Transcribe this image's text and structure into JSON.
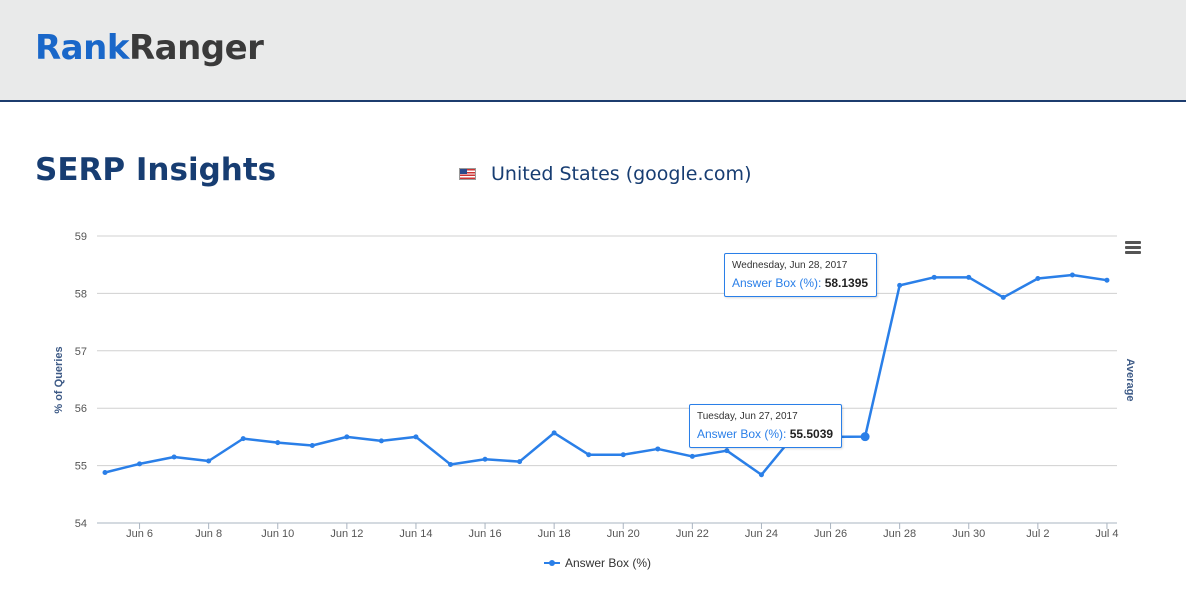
{
  "brand": {
    "logo_part1": "Rank",
    "logo_part2": "Ranger"
  },
  "page": {
    "title": "SERP Insights",
    "country": "United States (google.com)"
  },
  "colors": {
    "series": "#2a7fe8",
    "title": "#173d72",
    "header_bg": "#e9eaea"
  },
  "icons": {
    "flag": "us-flag-icon",
    "menu": "hamburger-menu-icon"
  },
  "tooltips": [
    {
      "date": "Wednesday, Jun 28, 2017",
      "series": "Answer Box (%)",
      "value": "58.1395"
    },
    {
      "date": "Tuesday, Jun 27, 2017",
      "series": "Answer Box (%)",
      "value": "55.5039"
    }
  ],
  "chart_data": {
    "type": "line",
    "ylabel": "% of Queries",
    "y2label": "Average",
    "ylim": [
      54,
      59
    ],
    "yticks": [
      54,
      55,
      56,
      57,
      58,
      59
    ],
    "grid": true,
    "legend_position": "bottom-center",
    "x": [
      "2017-06-05",
      "2017-06-06",
      "2017-06-07",
      "2017-06-08",
      "2017-06-09",
      "2017-06-10",
      "2017-06-11",
      "2017-06-12",
      "2017-06-13",
      "2017-06-14",
      "2017-06-15",
      "2017-06-16",
      "2017-06-17",
      "2017-06-18",
      "2017-06-19",
      "2017-06-20",
      "2017-06-21",
      "2017-06-22",
      "2017-06-23",
      "2017-06-24",
      "2017-06-25",
      "2017-06-26",
      "2017-06-27",
      "2017-06-28",
      "2017-06-29",
      "2017-06-30",
      "2017-07-01",
      "2017-07-02",
      "2017-07-03",
      "2017-07-04"
    ],
    "xtick_labels": [
      {
        "index": 1,
        "label": "Jun 6"
      },
      {
        "index": 3,
        "label": "Jun 8"
      },
      {
        "index": 5,
        "label": "Jun 10"
      },
      {
        "index": 7,
        "label": "Jun 12"
      },
      {
        "index": 9,
        "label": "Jun 14"
      },
      {
        "index": 11,
        "label": "Jun 16"
      },
      {
        "index": 13,
        "label": "Jun 18"
      },
      {
        "index": 15,
        "label": "Jun 20"
      },
      {
        "index": 17,
        "label": "Jun 22"
      },
      {
        "index": 19,
        "label": "Jun 24"
      },
      {
        "index": 21,
        "label": "Jun 26"
      },
      {
        "index": 23,
        "label": "Jun 28"
      },
      {
        "index": 25,
        "label": "Jun 30"
      },
      {
        "index": 27,
        "label": "Jul 2"
      },
      {
        "index": 29,
        "label": "Jul 4"
      }
    ],
    "series": [
      {
        "name": "Answer Box (%)",
        "values": [
          54.88,
          55.03,
          55.15,
          55.08,
          55.47,
          55.4,
          55.35,
          55.5,
          55.43,
          55.5,
          55.02,
          55.11,
          55.07,
          55.57,
          55.19,
          55.19,
          55.29,
          55.16,
          55.26,
          54.84,
          55.57,
          55.5,
          55.5039,
          58.1395,
          58.28,
          58.28,
          57.93,
          58.26,
          58.32,
          58.23
        ]
      }
    ]
  }
}
